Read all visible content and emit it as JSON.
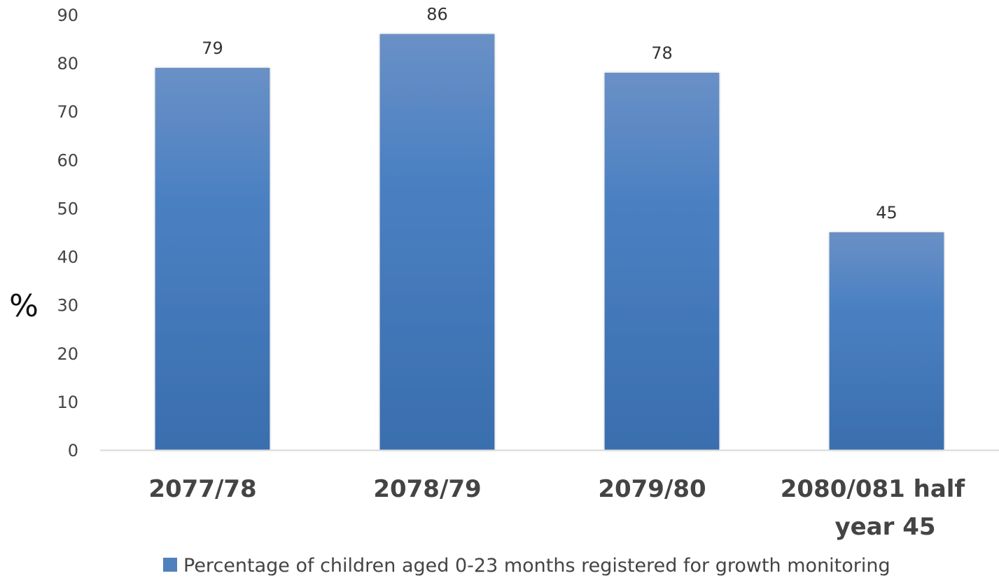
{
  "chart_data": {
    "type": "bar",
    "categories": [
      [
        "2077/78"
      ],
      [
        "2078/79"
      ],
      [
        "2079/80"
      ],
      [
        "2080/081 half",
        "year 45"
      ]
    ],
    "series": [
      {
        "name": "Percentage of children aged 0-23 months registered for growth monitoring",
        "values": [
          79,
          86,
          78,
          45
        ],
        "labels": [
          "79",
          "86",
          "78",
          "45"
        ]
      }
    ],
    "ylabel": "%",
    "ylim": [
      0,
      90
    ],
    "yticks": [
      "0",
      "10",
      "20",
      "30",
      "40",
      "50",
      "60",
      "70",
      "80",
      "90"
    ],
    "grid": false,
    "legend_position": "bottom",
    "colors": {
      "bar_top": "#6a90c6",
      "bar_mid": "#4a80c2",
      "bar_bottom": "#3a6eae",
      "legend_swatch": "#4f81bd",
      "axis": "#d9d9d9"
    }
  }
}
